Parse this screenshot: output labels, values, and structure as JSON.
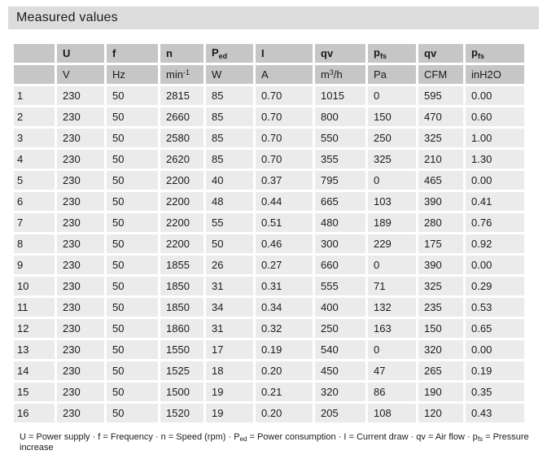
{
  "title": "Measured values",
  "colors": {
    "title_bar": "#dcdcdc",
    "header_bg": "#c6c6c6",
    "row_bg": "#ebebeb",
    "text": "#1a1a1a"
  },
  "table": {
    "columns": [
      {
        "label": ""
      },
      {
        "label": "U"
      },
      {
        "label": "f"
      },
      {
        "label": "n"
      },
      {
        "label": "P",
        "sub": "ed"
      },
      {
        "label": "I"
      },
      {
        "label": "qv"
      },
      {
        "label": "p",
        "sub": "fs"
      },
      {
        "label": "qv"
      },
      {
        "label": "p",
        "sub": "fs"
      }
    ],
    "units": [
      {
        "text": ""
      },
      {
        "text": "V"
      },
      {
        "text": "Hz"
      },
      {
        "text": "min",
        "sup": "-1"
      },
      {
        "text": "W"
      },
      {
        "text": "A"
      },
      {
        "text": "m",
        "sup": "3",
        "suffix": "/h"
      },
      {
        "text": "Pa"
      },
      {
        "text": "CFM"
      },
      {
        "text": "inH2O"
      }
    ],
    "rows": [
      [
        "1",
        "230",
        "50",
        "2815",
        "85",
        "0.70",
        "1015",
        "0",
        "595",
        "0.00"
      ],
      [
        "2",
        "230",
        "50",
        "2660",
        "85",
        "0.70",
        "800",
        "150",
        "470",
        "0.60"
      ],
      [
        "3",
        "230",
        "50",
        "2580",
        "85",
        "0.70",
        "550",
        "250",
        "325",
        "1.00"
      ],
      [
        "4",
        "230",
        "50",
        "2620",
        "85",
        "0.70",
        "355",
        "325",
        "210",
        "1.30"
      ],
      [
        "5",
        "230",
        "50",
        "2200",
        "40",
        "0.37",
        "795",
        "0",
        "465",
        "0.00"
      ],
      [
        "6",
        "230",
        "50",
        "2200",
        "48",
        "0.44",
        "665",
        "103",
        "390",
        "0.41"
      ],
      [
        "7",
        "230",
        "50",
        "2200",
        "55",
        "0.51",
        "480",
        "189",
        "280",
        "0.76"
      ],
      [
        "8",
        "230",
        "50",
        "2200",
        "50",
        "0.46",
        "300",
        "229",
        "175",
        "0.92"
      ],
      [
        "9",
        "230",
        "50",
        "1855",
        "26",
        "0.27",
        "660",
        "0",
        "390",
        "0.00"
      ],
      [
        "10",
        "230",
        "50",
        "1850",
        "31",
        "0.31",
        "555",
        "71",
        "325",
        "0.29"
      ],
      [
        "11",
        "230",
        "50",
        "1850",
        "34",
        "0.34",
        "400",
        "132",
        "235",
        "0.53"
      ],
      [
        "12",
        "230",
        "50",
        "1860",
        "31",
        "0.32",
        "250",
        "163",
        "150",
        "0.65"
      ],
      [
        "13",
        "230",
        "50",
        "1550",
        "17",
        "0.19",
        "540",
        "0",
        "320",
        "0.00"
      ],
      [
        "14",
        "230",
        "50",
        "1525",
        "18",
        "0.20",
        "450",
        "47",
        "265",
        "0.19"
      ],
      [
        "15",
        "230",
        "50",
        "1500",
        "19",
        "0.21",
        "320",
        "86",
        "190",
        "0.35"
      ],
      [
        "16",
        "230",
        "50",
        "1520",
        "19",
        "0.20",
        "205",
        "108",
        "120",
        "0.43"
      ]
    ]
  },
  "footnote": {
    "part1": "U = Power supply · f = Frequency · n = Speed (rpm) · P",
    "sub1": "ed",
    "part2": " = Power consumption · I = Current draw · qv = Air flow · p",
    "sub2": "fs",
    "part3": " = Pressure increase"
  }
}
